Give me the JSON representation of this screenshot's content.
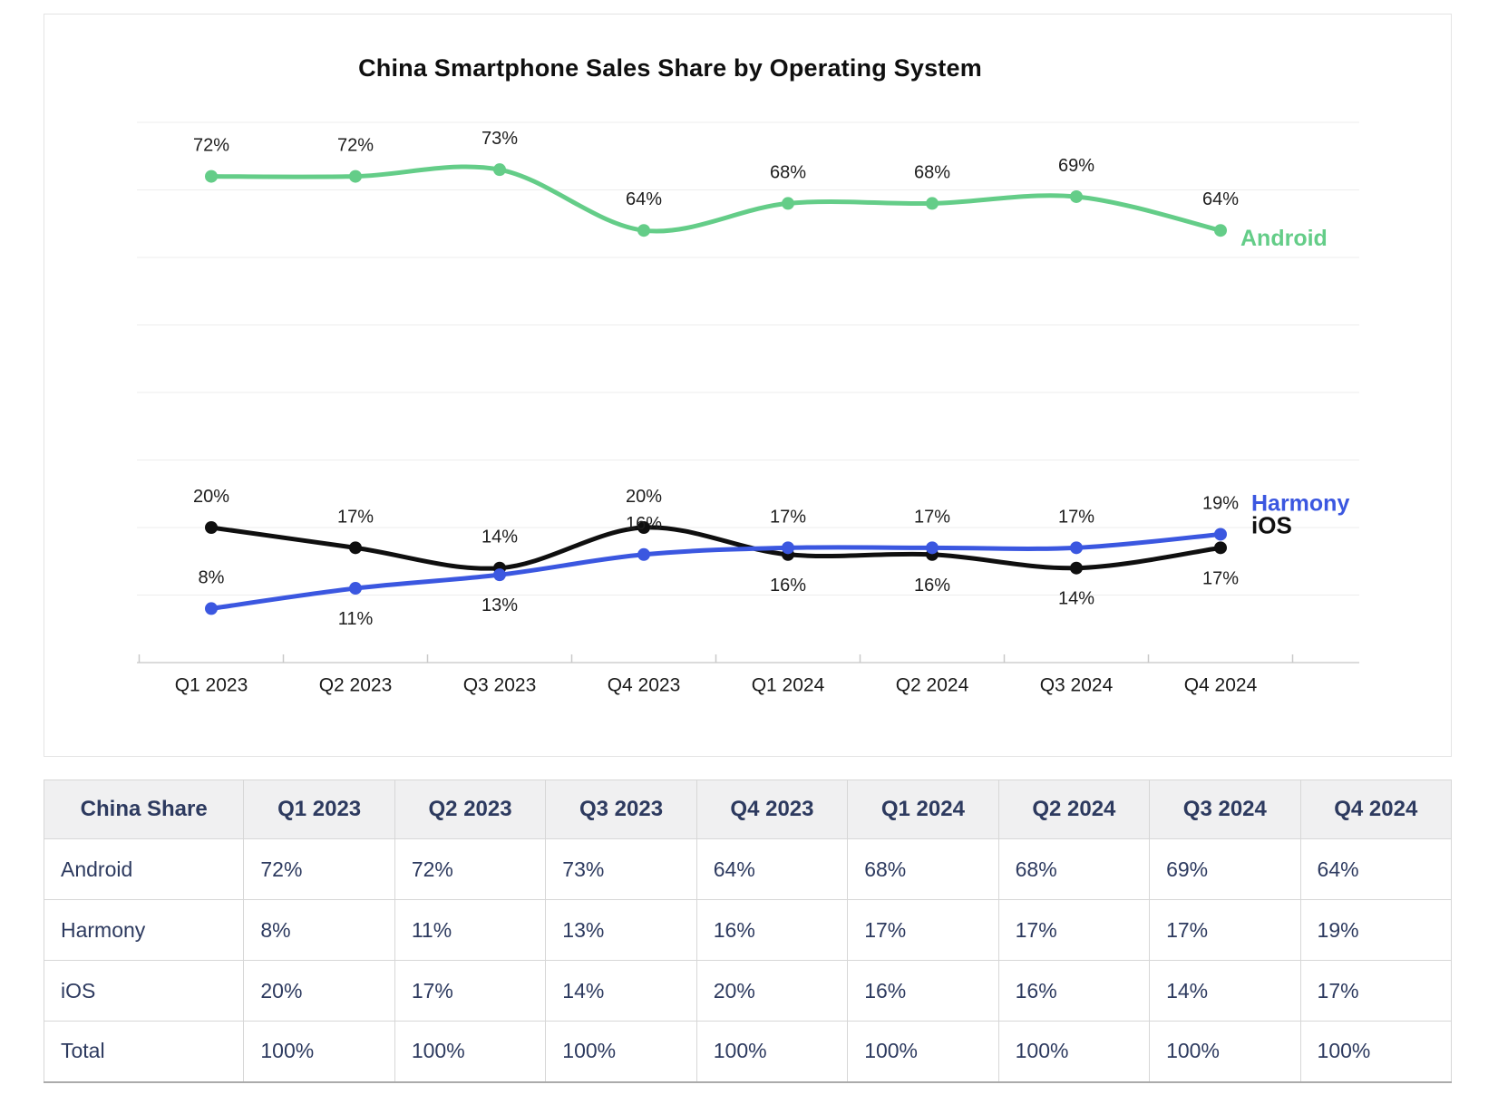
{
  "title": "China Smartphone Sales Share by Operating System",
  "chart_data": {
    "type": "line",
    "categories": [
      "Q1 2023",
      "Q2 2023",
      "Q3 2023",
      "Q4 2023",
      "Q1 2024",
      "Q2 2024",
      "Q3 2024",
      "Q4 2024"
    ],
    "series": [
      {
        "name": "Android",
        "color": "#64cd88",
        "values": [
          72,
          72,
          73,
          64,
          68,
          68,
          69,
          64
        ],
        "labels": [
          "72%",
          "72%",
          "73%",
          "64%",
          "68%",
          "68%",
          "69%",
          "64%"
        ],
        "label_pos": [
          "above",
          "above",
          "above",
          "above",
          "above",
          "above",
          "above",
          "above"
        ]
      },
      {
        "name": "iOS",
        "color": "#0f0f0f",
        "values": [
          20,
          17,
          14,
          20,
          16,
          16,
          14,
          17
        ],
        "labels": [
          "20%",
          "17%",
          "14%",
          "20%",
          "16%",
          "16%",
          "14%",
          "17%"
        ],
        "label_pos": [
          "above",
          "above",
          "above",
          "above",
          "below",
          "below",
          "below",
          "below"
        ]
      },
      {
        "name": "Harmony",
        "color": "#3b57e0",
        "values": [
          8,
          11,
          13,
          16,
          17,
          17,
          17,
          19
        ],
        "labels": [
          "8%",
          "11%",
          "13%",
          "16%",
          "17%",
          "17%",
          "17%",
          "19%"
        ],
        "label_pos": [
          "above",
          "below",
          "below",
          "above",
          "above",
          "above",
          "above",
          "above"
        ]
      }
    ],
    "title": "China Smartphone Sales Share by Operating System",
    "xlabel": "",
    "ylabel": "",
    "ylim": [
      0,
      80
    ],
    "gridline_step": 10,
    "grid": true,
    "legend_position": "right-end-of-line"
  },
  "table": {
    "header": [
      "China Share",
      "Q1 2023",
      "Q2 2023",
      "Q3 2023",
      "Q4 2023",
      "Q1 2024",
      "Q2 2024",
      "Q3 2024",
      "Q4 2024"
    ],
    "rows": [
      {
        "label": "Android",
        "values": [
          "72%",
          "72%",
          "73%",
          "64%",
          "68%",
          "68%",
          "69%",
          "64%"
        ]
      },
      {
        "label": "Harmony",
        "values": [
          "8%",
          "11%",
          "13%",
          "16%",
          "17%",
          "17%",
          "17%",
          "19%"
        ]
      },
      {
        "label": "iOS",
        "values": [
          "20%",
          "17%",
          "14%",
          "20%",
          "16%",
          "16%",
          "14%",
          "17%"
        ]
      },
      {
        "label": "Total",
        "values": [
          "100%",
          "100%",
          "100%",
          "100%",
          "100%",
          "100%",
          "100%",
          "100%"
        ]
      }
    ]
  },
  "colors": {
    "android": "#64cd88",
    "harmony": "#3b57e0",
    "ios": "#0f0f0f",
    "grid": "#ededed",
    "axis": "#cfcfcf",
    "tick": "#c9c9c9",
    "data_label": "#1d1d1d",
    "axis_label": "#1a1a1a",
    "table_text": "#2d3a5f",
    "header_bg": "#f0f0f1"
  }
}
